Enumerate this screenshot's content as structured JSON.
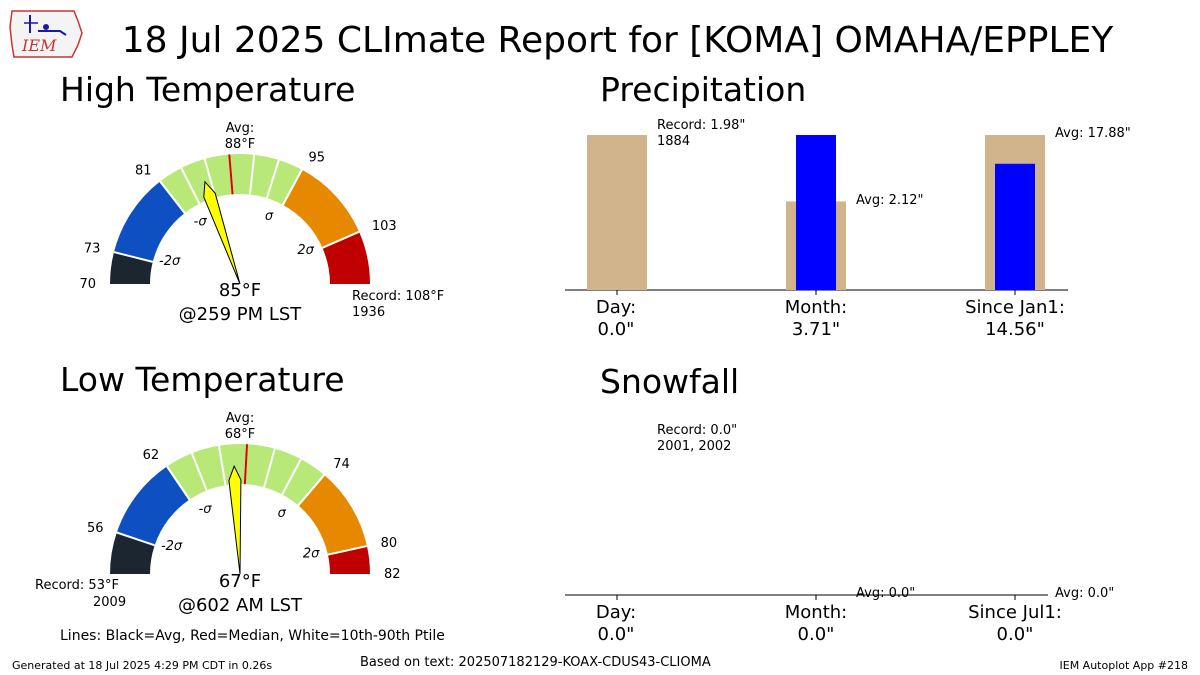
{
  "header": {
    "title": "18 Jul 2025 CLImate Report for [KOMA] OMAHA/EPPLEY",
    "logo_text": "IEM"
  },
  "panels": {
    "high_title": "High Temperature",
    "low_title": "Low Temperature",
    "precip_title": "Precipitation",
    "snow_title": "Snowfall"
  },
  "chart_data": [
    {
      "type": "gauge",
      "title": "High Temperature",
      "scale": [
        70,
        108
      ],
      "bands": [
        {
          "from": 70,
          "to": 73,
          "color": "#1b2631"
        },
        {
          "from": 73,
          "to": 81,
          "color": "#0e4fc1"
        },
        {
          "from": 81,
          "to": 95,
          "color": "#b8e878"
        },
        {
          "from": 95,
          "to": 103,
          "color": "#e68800"
        },
        {
          "from": 103,
          "to": 108,
          "color": "#c00000"
        }
      ],
      "tick_labels": [
        "70",
        "73",
        "81",
        "95",
        "103"
      ],
      "sigma_labels": [
        "-2σ",
        "-σ",
        "σ",
        "2σ"
      ],
      "avg_label": "Avg:",
      "avg_value": "88°F",
      "avg": 88,
      "median": 88,
      "observed": 85,
      "observed_label": "85°F",
      "time_label": "@259 PM LST",
      "record_label": "Record: 108°F",
      "record_year": "1936"
    },
    {
      "type": "gauge",
      "title": "Low Temperature",
      "scale": [
        53,
        82
      ],
      "bands": [
        {
          "from": 53,
          "to": 56,
          "color": "#1b2631"
        },
        {
          "from": 56,
          "to": 62,
          "color": "#0e4fc1"
        },
        {
          "from": 62,
          "to": 74,
          "color": "#b8e878"
        },
        {
          "from": 74,
          "to": 80,
          "color": "#e68800"
        },
        {
          "from": 80,
          "to": 82,
          "color": "#c00000"
        }
      ],
      "tick_labels": [
        "56",
        "62",
        "74",
        "80",
        "82"
      ],
      "sigma_labels": [
        "-2σ",
        "-σ",
        "σ",
        "2σ"
      ],
      "avg_label": "Avg:",
      "avg_value": "68°F",
      "avg": 68,
      "median": 68,
      "observed": 67,
      "observed_label": "67°F",
      "time_label": "@602 AM LST",
      "record_label": "Record: 53°F",
      "record_year": "2009"
    },
    {
      "type": "bar",
      "title": "Precipitation",
      "categories": [
        "Day:",
        "Month:",
        "Since Jan1:"
      ],
      "value_labels": [
        "0.0\"",
        "3.71\"",
        "14.56\""
      ],
      "series": [
        {
          "name": "Observed",
          "color": "#0000ff",
          "values": [
            0.0,
            3.71,
            14.56
          ]
        },
        {
          "name": "Average",
          "color": "#d2b48c",
          "values": [
            null,
            2.12,
            17.88
          ]
        }
      ],
      "record_day": {
        "value": 1.98,
        "label": "Record: 1.98\"",
        "year": "1884"
      },
      "avg_labels": [
        "Avg: 2.12\"",
        "Avg: 17.88\""
      ]
    },
    {
      "type": "bar",
      "title": "Snowfall",
      "categories": [
        "Day:",
        "Month:",
        "Since Jul1:"
      ],
      "value_labels": [
        "0.0\"",
        "0.0\"",
        "0.0\""
      ],
      "series": [
        {
          "name": "Observed",
          "color": "#0000ff",
          "values": [
            0.0,
            0.0,
            0.0
          ]
        },
        {
          "name": "Average",
          "color": "#d2b48c",
          "values": [
            null,
            0.0,
            0.0
          ]
        }
      ],
      "record_day": {
        "value": 0.0,
        "label": "Record: 0.0\"",
        "years": "2001, 2002"
      },
      "avg_labels": [
        "Avg: 0.0\"",
        "Avg: 0.0\""
      ]
    }
  ],
  "legend_note": "Lines: Black=Avg, Red=Median, White=10th-90th Ptile",
  "footer": {
    "generated": "Generated at 18 Jul 2025 4:29 PM CDT in 0.26s",
    "based_on": "Based on text: 202507182129-KOAX-CDUS43-CLIOMA",
    "app": "IEM Autoplot App #218"
  }
}
